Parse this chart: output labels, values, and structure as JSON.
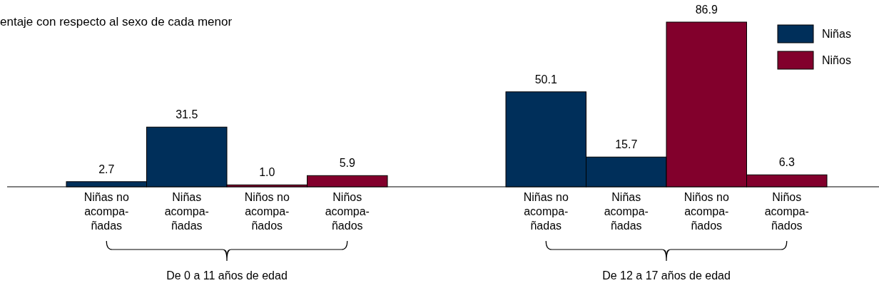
{
  "chart_data": {
    "type": "bar",
    "subtitle": "entaje con respecto al sexo de cada menor",
    "categories": [
      "Niñas no\nacompa-\nñadas",
      "Niñas\nacompa-\nñadas",
      "Niños no\nacompa-\nñados",
      "Niños\nacompa-\nñados",
      "Niñas no\nacompa-\nñadas",
      "Niñas\nacompa-\nñadas",
      "Niños no\nacompa-\nñados",
      "Niños\nacompa-\nñados"
    ],
    "series": [
      {
        "name": "Niñas",
        "color": "#002f5a",
        "values": [
          2.7,
          31.5,
          null,
          null,
          50.1,
          15.7,
          null,
          null
        ],
        "value_labels": [
          "2.7",
          "31.5",
          null,
          null,
          "50.1",
          "15.7",
          null,
          null
        ]
      },
      {
        "name": "Niños",
        "color": "#82002c",
        "values": [
          null,
          null,
          1.0,
          5.9,
          null,
          null,
          86.9,
          6.3
        ],
        "value_labels": [
          null,
          null,
          "1.0",
          "5.9",
          null,
          null,
          "86.9",
          "6.3"
        ]
      }
    ],
    "legend": "top right",
    "annotations": [
      "De 0 a 11 años de edad",
      "De 12 a 17 años de edad"
    ]
  }
}
